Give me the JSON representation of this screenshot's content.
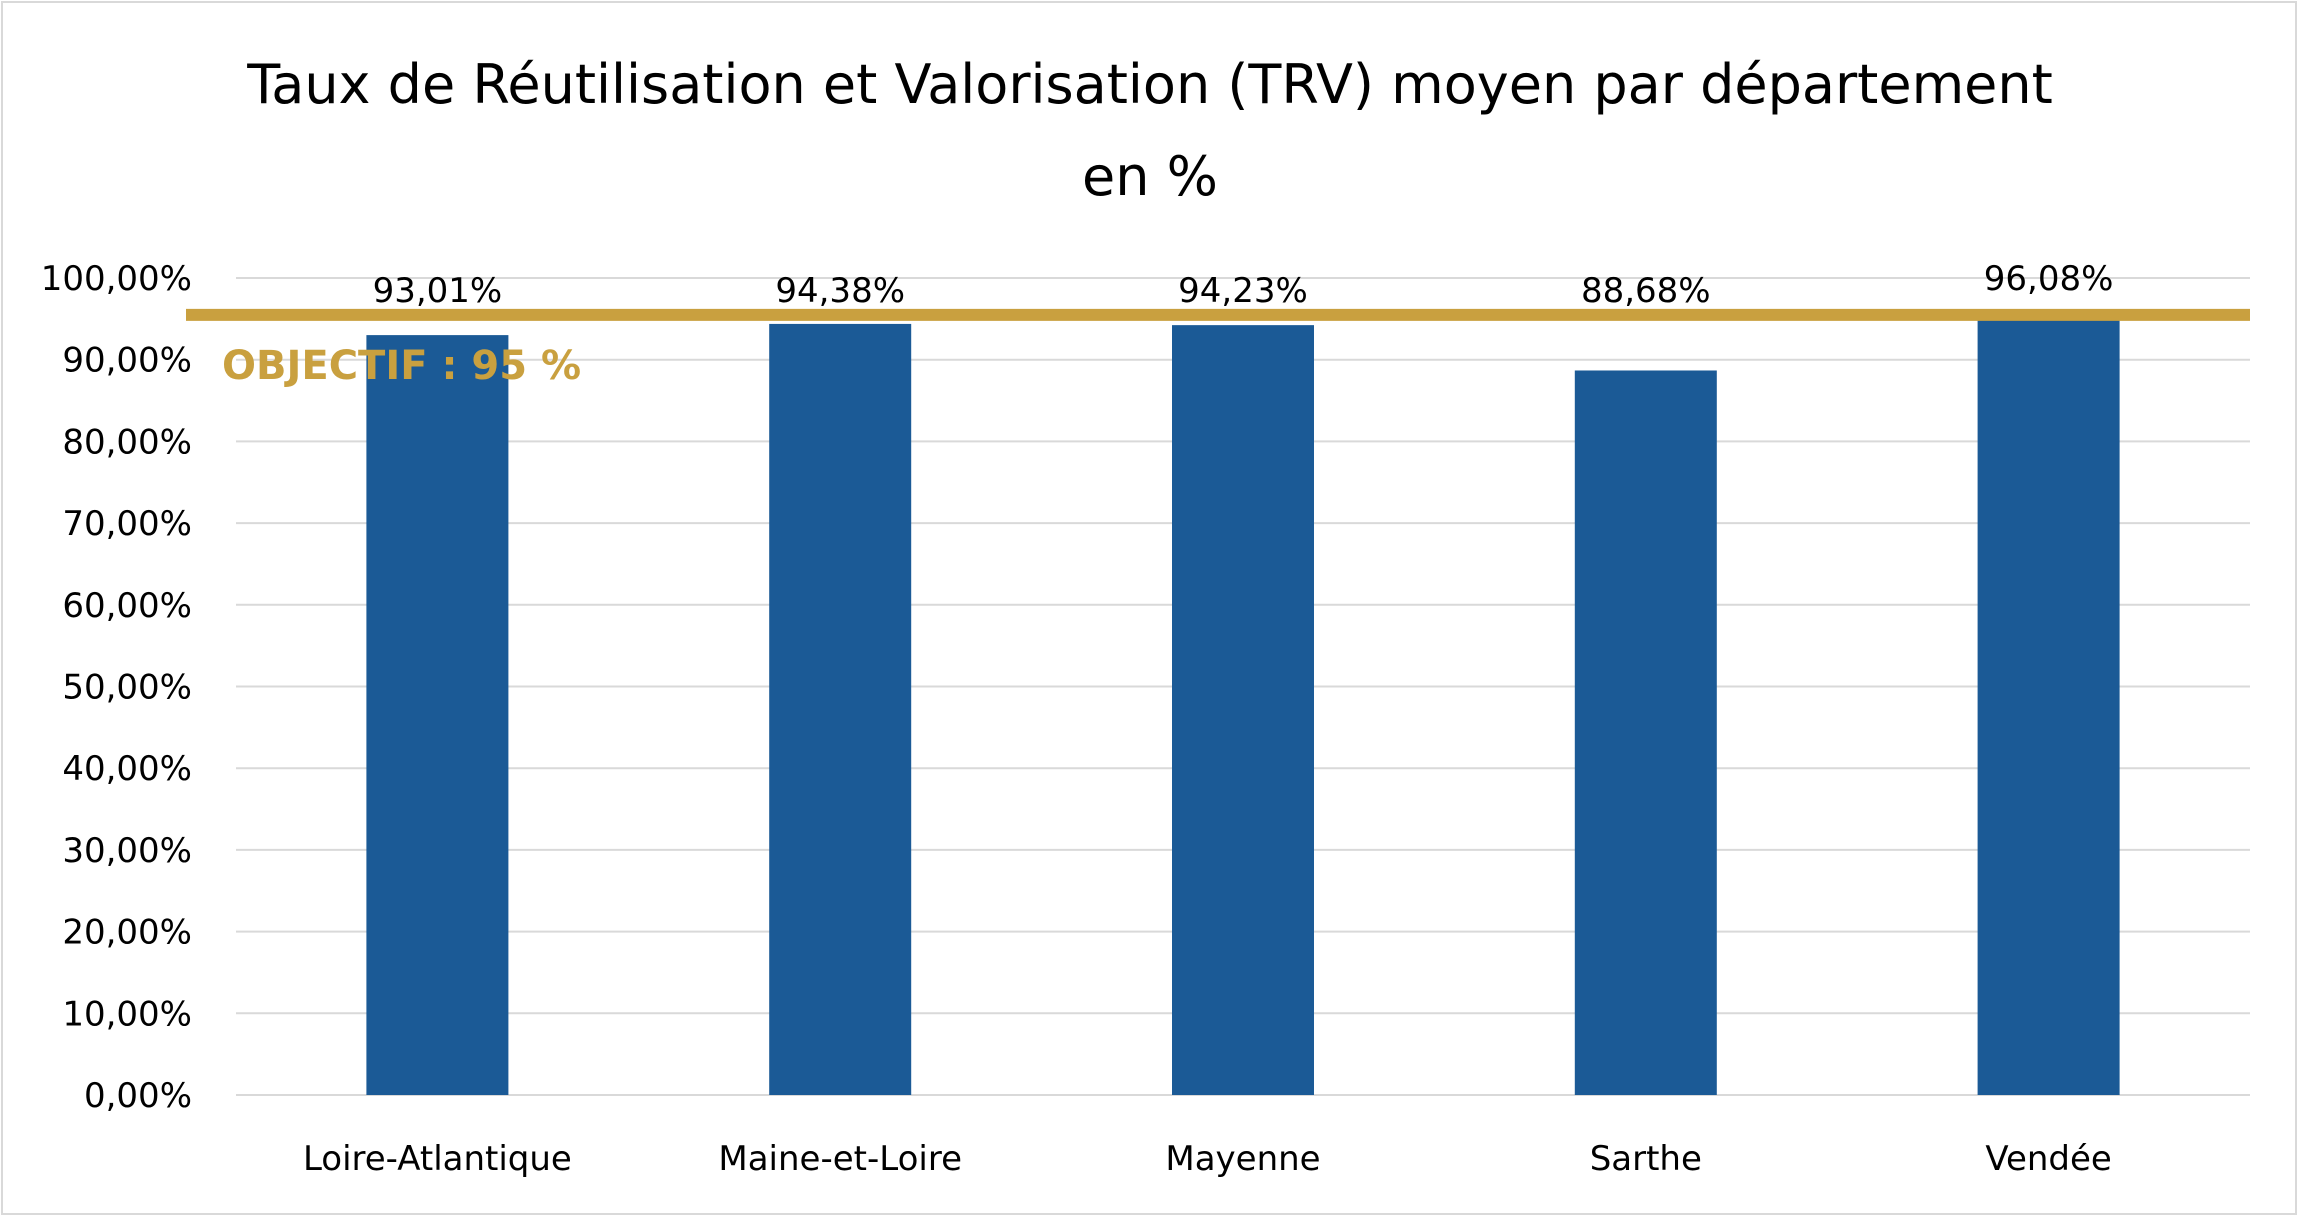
{
  "chart_data": {
    "type": "bar",
    "title": "Taux de Réutilisation et Valorisation (TRV) moyen par département",
    "subtitle": "en %",
    "categories": [
      "Loire-Atlantique",
      "Maine-et-Loire",
      "Mayenne",
      "Sarthe",
      "Vendée"
    ],
    "values": [
      93.01,
      94.38,
      94.23,
      88.68,
      96.08
    ],
    "value_labels": [
      "93,01%",
      "94,38%",
      "94,23%",
      "88,68%",
      "96,08%"
    ],
    "ylim": [
      0,
      100
    ],
    "yticks": [
      0,
      10,
      20,
      30,
      40,
      50,
      60,
      70,
      80,
      90,
      100
    ],
    "ytick_labels": [
      "0,00%",
      "10,00%",
      "20,00%",
      "30,00%",
      "40,00%",
      "50,00%",
      "60,00%",
      "70,00%",
      "80,00%",
      "90,00%",
      "100,00%"
    ],
    "grid": true,
    "legend": "none",
    "target": {
      "label": "OBJECTIF : 95 %",
      "value": 95
    },
    "colors": {
      "bar": "#1b5a96",
      "target": "#c9a03f",
      "grid": "#d9d9d9"
    }
  }
}
